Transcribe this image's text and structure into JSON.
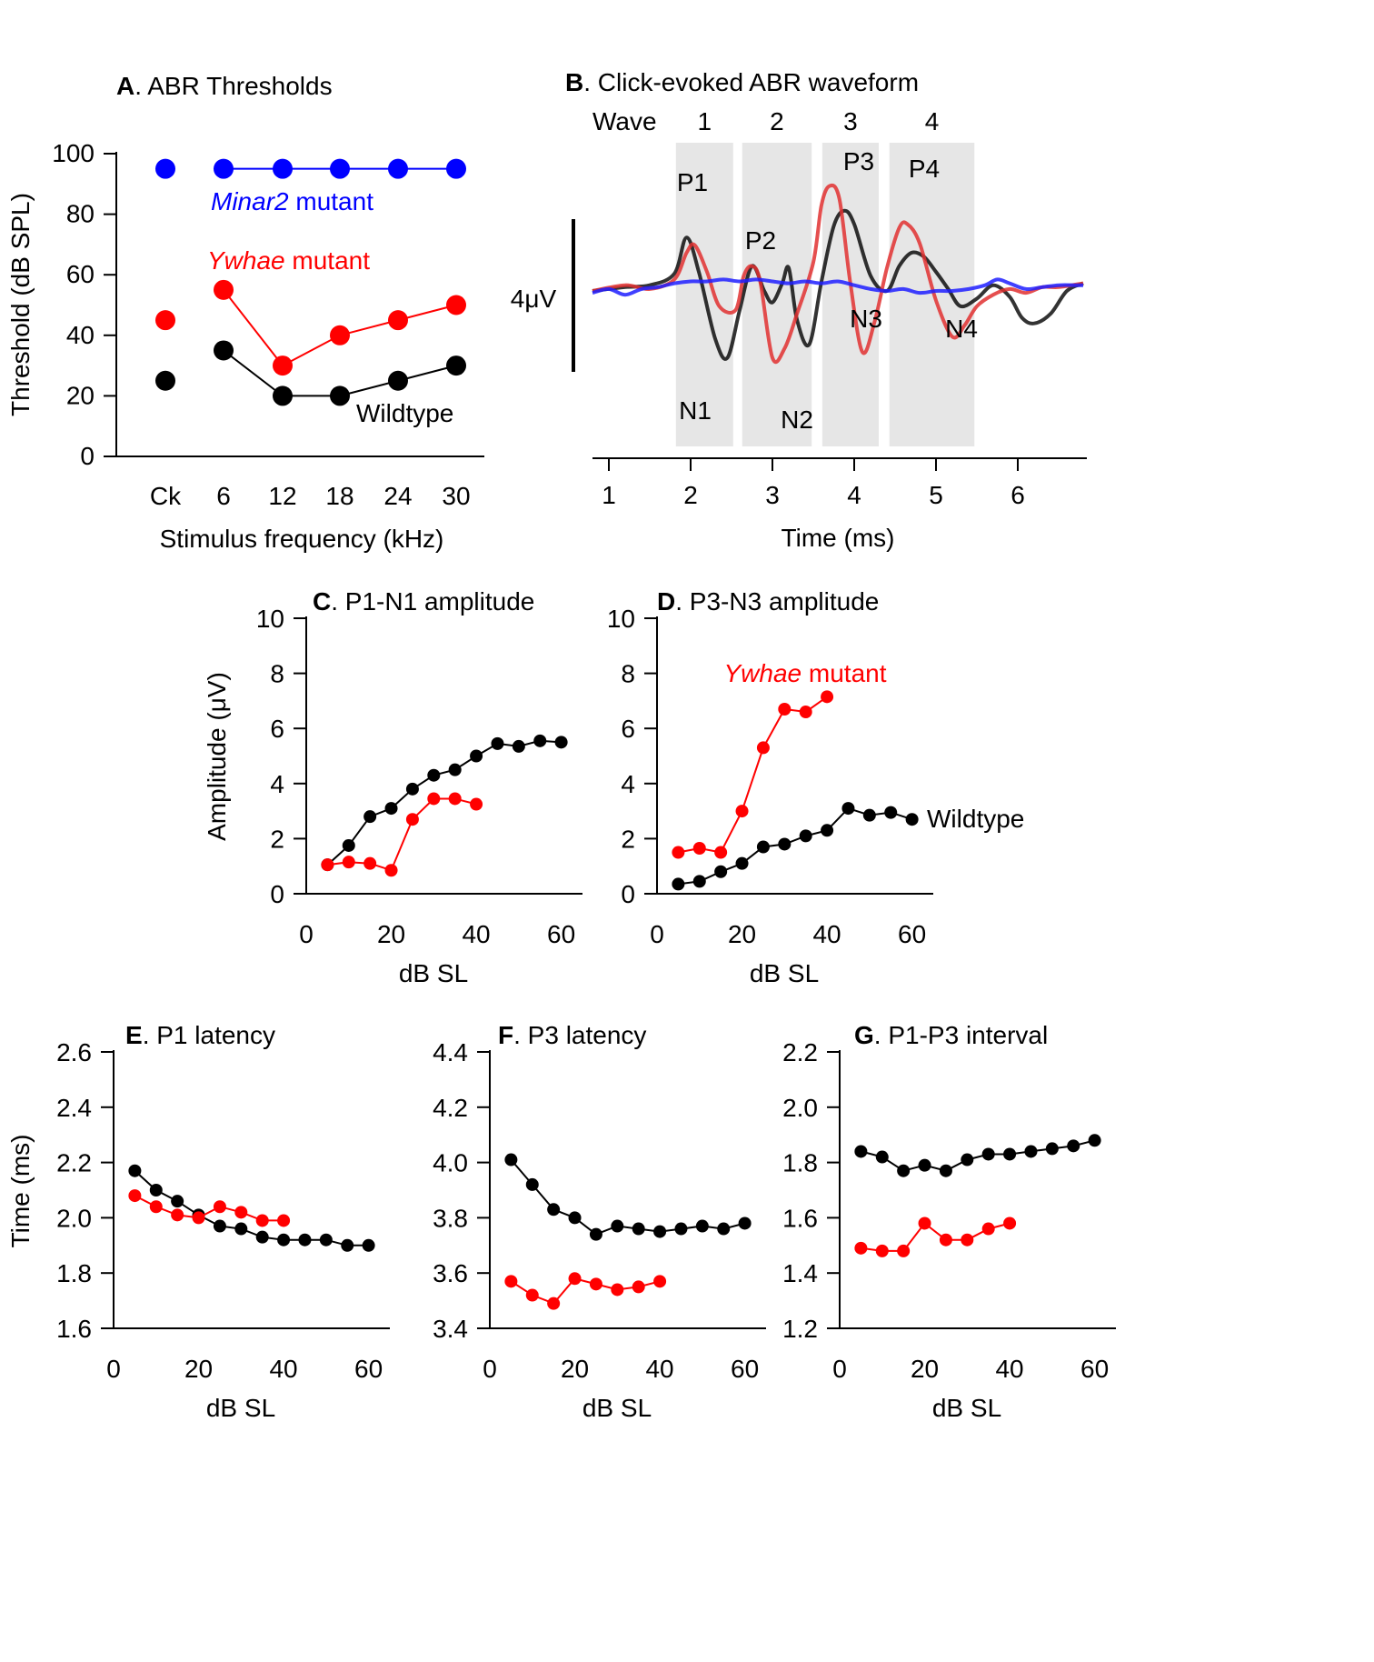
{
  "chart_data": [
    {
      "id": "A",
      "panel_letter": "A",
      "title": ". ABR Thresholds",
      "type": "scatter",
      "xlabel": "Stimulus frequency (kHz)",
      "ylabel": "Threshold (dB SPL)",
      "categories": [
        "Ck",
        "6",
        "12",
        "18",
        "24",
        "30"
      ],
      "ylim": [
        0,
        100
      ],
      "yticks": [
        0,
        20,
        40,
        60,
        80,
        100
      ],
      "series": [
        {
          "name": "Minar2 mutant",
          "color": "#0000ff",
          "values": [
            95,
            95,
            95,
            95,
            95,
            95
          ],
          "connect_from": 1
        },
        {
          "name": "Ywhae mutant",
          "color": "#ff0000",
          "values": [
            45,
            55,
            30,
            40,
            45,
            50
          ],
          "connect_from": 1
        },
        {
          "name": "Wildtype",
          "color": "#000000",
          "values": [
            25,
            35,
            20,
            20,
            25,
            30
          ],
          "connect_from": 1
        }
      ],
      "annotations": [
        {
          "key": "minar2",
          "italic": "Minar2",
          "rest": " mutant",
          "color": "#0000ff"
        },
        {
          "key": "ywhae",
          "italic": "Ywhae",
          "rest": " mutant",
          "color": "#ff0000"
        },
        {
          "key": "wt",
          "italic": "",
          "rest": "Wildtype",
          "color": "#000000"
        }
      ]
    },
    {
      "id": "B",
      "panel_letter": "B",
      "title": ". Click-evoked ABR waveform",
      "type": "line",
      "xlabel": "Time (ms)",
      "xlim": [
        0.8,
        6.8
      ],
      "xticks": [
        1,
        2,
        3,
        4,
        5,
        6
      ],
      "scale_bar_label": "4μV",
      "wave_label": "Wave",
      "wave_bands": [
        {
          "label": "1",
          "start": 1.82,
          "end": 2.52
        },
        {
          "label": "2",
          "start": 2.63,
          "end": 3.48
        },
        {
          "label": "3",
          "start": 3.61,
          "end": 4.3
        },
        {
          "label": "4",
          "start": 4.43,
          "end": 5.47
        }
      ],
      "peak_labels": [
        "P1",
        "N1",
        "P2",
        "N2",
        "P3",
        "N3",
        "P4",
        "N4"
      ],
      "series": [
        {
          "name": "Wildtype",
          "color": "#000000",
          "x": [
            0.8,
            1.2,
            1.5,
            1.8,
            1.95,
            2.1,
            2.3,
            2.45,
            2.6,
            2.75,
            2.9,
            3.0,
            3.12,
            3.2,
            3.3,
            3.45,
            3.6,
            3.75,
            3.88,
            4.0,
            4.2,
            4.4,
            4.55,
            4.7,
            4.85,
            5.0,
            5.15,
            5.3,
            5.5,
            5.7,
            5.9,
            6.05,
            6.2,
            6.4,
            6.6,
            6.8
          ],
          "y": [
            0,
            0.2,
            0.3,
            0.9,
            2.8,
            1.0,
            -2.5,
            -3.5,
            -1.0,
            1.3,
            0,
            -0.6,
            0.4,
            1.2,
            -1.5,
            -2.8,
            0.5,
            3.4,
            4.2,
            3.5,
            0.8,
            0.0,
            1.3,
            2.0,
            1.8,
            1.0,
            0.1,
            -0.8,
            -0.4,
            0.3,
            -0.3,
            -1.4,
            -1.7,
            -1.2,
            0.0,
            0.4
          ]
        },
        {
          "name": "Ywhae mutant",
          "color": "#e03030",
          "x": [
            0.8,
            1.2,
            1.5,
            1.8,
            1.95,
            2.05,
            2.2,
            2.35,
            2.55,
            2.65,
            2.75,
            2.85,
            3.0,
            3.15,
            3.3,
            3.5,
            3.6,
            3.7,
            3.82,
            3.95,
            4.1,
            4.25,
            4.4,
            4.55,
            4.65,
            4.8,
            5.0,
            5.2,
            5.35,
            5.5,
            5.7,
            5.9,
            6.1,
            6.3,
            6.5,
            6.8
          ],
          "y": [
            0,
            0.3,
            0.1,
            0.6,
            2.0,
            2.4,
            1.0,
            -0.8,
            -1.0,
            0.8,
            1.3,
            0.5,
            -3.5,
            -3.0,
            -1.2,
            1.5,
            4.5,
            5.5,
            4.8,
            0.5,
            -3.2,
            -1.6,
            1.2,
            3.3,
            3.5,
            2.5,
            -0.5,
            -2.4,
            -1.8,
            -0.8,
            -0.2,
            0.1,
            -0.1,
            0.2,
            0.2,
            0.4
          ]
        },
        {
          "name": "Minar2 mutant",
          "color": "#1f1fff",
          "x": [
            0.8,
            1.0,
            1.2,
            1.4,
            1.6,
            1.8,
            2.0,
            2.2,
            2.4,
            2.6,
            2.8,
            3.0,
            3.2,
            3.4,
            3.6,
            3.8,
            4.0,
            4.2,
            4.4,
            4.6,
            4.8,
            5.0,
            5.2,
            5.4,
            5.6,
            5.75,
            5.9,
            6.1,
            6.3,
            6.5,
            6.7,
            6.8
          ],
          "y": [
            -0.1,
            0.1,
            -0.2,
            0.1,
            0.2,
            0.4,
            0.5,
            0.5,
            0.6,
            0.5,
            0.6,
            0.5,
            0.4,
            0.5,
            0.4,
            0.5,
            0.3,
            0.1,
            0.0,
            0.1,
            -0.1,
            0.0,
            0.0,
            0.1,
            0.3,
            0.6,
            0.4,
            0.1,
            0.2,
            0.3,
            0.3,
            0.3
          ]
        }
      ]
    },
    {
      "id": "C",
      "panel_letter": "C",
      "title": ". P1-N1 amplitude",
      "type": "line",
      "xlabel": "dB SL",
      "ylabel": "Amplitude (μV)",
      "xlim": [
        0,
        65
      ],
      "ylim": [
        0,
        10
      ],
      "xticks": [
        0,
        20,
        40,
        60
      ],
      "yticks": [
        0,
        2,
        4,
        6,
        8,
        10
      ],
      "series": [
        {
          "name": "Wildtype",
          "color": "#000000",
          "x": [
            5,
            10,
            15,
            20,
            25,
            30,
            35,
            40,
            45,
            50,
            55,
            60
          ],
          "y": [
            1.05,
            1.75,
            2.8,
            3.1,
            3.8,
            4.3,
            4.5,
            5.0,
            5.45,
            5.35,
            5.55,
            5.5
          ]
        },
        {
          "name": "Ywhae mutant",
          "color": "#ff0000",
          "x": [
            5,
            10,
            15,
            20,
            25,
            30,
            35,
            40
          ],
          "y": [
            1.05,
            1.15,
            1.1,
            0.85,
            2.7,
            3.45,
            3.45,
            3.25
          ]
        }
      ]
    },
    {
      "id": "D",
      "panel_letter": "D",
      "title": ". P3-N3 amplitude",
      "type": "line",
      "xlabel": "dB SL",
      "xlim": [
        0,
        65
      ],
      "ylim": [
        0,
        10
      ],
      "xticks": [
        0,
        20,
        40,
        60
      ],
      "yticks": [
        0,
        2,
        4,
        6,
        8,
        10
      ],
      "series": [
        {
          "name": "Wildtype",
          "color": "#000000",
          "x": [
            5,
            10,
            15,
            20,
            25,
            30,
            35,
            40,
            45,
            50,
            55,
            60
          ],
          "y": [
            0.35,
            0.45,
            0.8,
            1.1,
            1.7,
            1.8,
            2.1,
            2.3,
            3.1,
            2.85,
            2.95,
            2.7
          ]
        },
        {
          "name": "Ywhae mutant",
          "color": "#ff0000",
          "x": [
            5,
            10,
            15,
            20,
            25,
            30,
            35,
            40
          ],
          "y": [
            1.5,
            1.65,
            1.5,
            3.0,
            5.3,
            6.7,
            6.6,
            7.15
          ]
        }
      ],
      "annotations": [
        {
          "key": "ywhae",
          "italic": "Ywhae",
          "rest": " mutant",
          "color": "#ff0000"
        },
        {
          "key": "wt",
          "italic": "",
          "rest": "Wildtype",
          "color": "#000000"
        }
      ]
    },
    {
      "id": "E",
      "panel_letter": "E",
      "title": ". P1 latency",
      "type": "line",
      "xlabel": "dB SL",
      "ylabel": "Time (ms)",
      "xlim": [
        0,
        65
      ],
      "ylim": [
        1.6,
        2.6
      ],
      "xticks": [
        0,
        20,
        40,
        60
      ],
      "yticks": [
        1.6,
        1.8,
        2.0,
        2.2,
        2.4,
        2.6
      ],
      "series": [
        {
          "name": "Wildtype",
          "color": "#000000",
          "x": [
            5,
            10,
            15,
            20,
            25,
            30,
            35,
            40,
            45,
            50,
            55,
            60
          ],
          "y": [
            2.17,
            2.1,
            2.06,
            2.01,
            1.97,
            1.96,
            1.93,
            1.92,
            1.92,
            1.92,
            1.9,
            1.9
          ]
        },
        {
          "name": "Ywhae mutant",
          "color": "#ff0000",
          "x": [
            5,
            10,
            15,
            20,
            25,
            30,
            35,
            40
          ],
          "y": [
            2.08,
            2.04,
            2.01,
            2.0,
            2.04,
            2.02,
            1.99,
            1.99
          ]
        }
      ]
    },
    {
      "id": "F",
      "panel_letter": "F",
      "title": ". P3 latency",
      "type": "line",
      "xlabel": "dB SL",
      "xlim": [
        0,
        65
      ],
      "ylim": [
        3.4,
        4.4
      ],
      "xticks": [
        0,
        20,
        40,
        60
      ],
      "yticks": [
        3.4,
        3.6,
        3.8,
        4.0,
        4.2,
        4.4
      ],
      "series": [
        {
          "name": "Wildtype",
          "color": "#000000",
          "x": [
            5,
            10,
            15,
            20,
            25,
            30,
            35,
            40,
            45,
            50,
            55,
            60
          ],
          "y": [
            4.01,
            3.92,
            3.83,
            3.8,
            3.74,
            3.77,
            3.76,
            3.75,
            3.76,
            3.77,
            3.76,
            3.78
          ]
        },
        {
          "name": "Ywhae mutant",
          "color": "#ff0000",
          "x": [
            5,
            10,
            15,
            20,
            25,
            30,
            35,
            40
          ],
          "y": [
            3.57,
            3.52,
            3.49,
            3.58,
            3.56,
            3.54,
            3.55,
            3.57
          ]
        }
      ]
    },
    {
      "id": "G",
      "panel_letter": "G",
      "title": ". P1-P3 interval",
      "type": "line",
      "xlabel": "dB SL",
      "xlim": [
        0,
        65
      ],
      "ylim": [
        1.2,
        2.2
      ],
      "xticks": [
        0,
        20,
        40,
        60
      ],
      "yticks": [
        1.2,
        1.4,
        1.6,
        1.8,
        2.0,
        2.2
      ],
      "series": [
        {
          "name": "Wildtype",
          "color": "#000000",
          "x": [
            5,
            10,
            15,
            20,
            25,
            30,
            35,
            40,
            45,
            50,
            55,
            60
          ],
          "y": [
            1.84,
            1.82,
            1.77,
            1.79,
            1.77,
            1.81,
            1.83,
            1.83,
            1.84,
            1.85,
            1.86,
            1.88
          ]
        },
        {
          "name": "Ywhae mutant",
          "color": "#ff0000",
          "x": [
            5,
            10,
            15,
            20,
            25,
            30,
            35,
            40
          ],
          "y": [
            1.49,
            1.48,
            1.48,
            1.58,
            1.52,
            1.52,
            1.56,
            1.58
          ]
        }
      ]
    }
  ]
}
